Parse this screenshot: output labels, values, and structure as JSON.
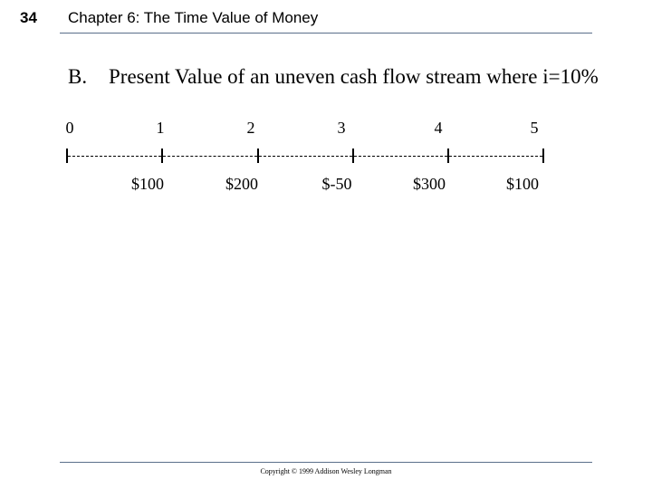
{
  "header": {
    "slide_number": "34",
    "chapter_title": "Chapter 6: The Time Value of Money"
  },
  "section": {
    "letter": "B.",
    "heading": "Present Value of an uneven cash flow stream where i=10%"
  },
  "timeline": {
    "periods": [
      "0",
      "1",
      "2",
      "3",
      "4",
      "5"
    ],
    "cash_flows": [
      "$100",
      "$200",
      "$-50",
      "$300",
      "$100"
    ]
  },
  "footer": {
    "copyright": "Copyright © 1999 Addison Wesley Longman"
  }
}
